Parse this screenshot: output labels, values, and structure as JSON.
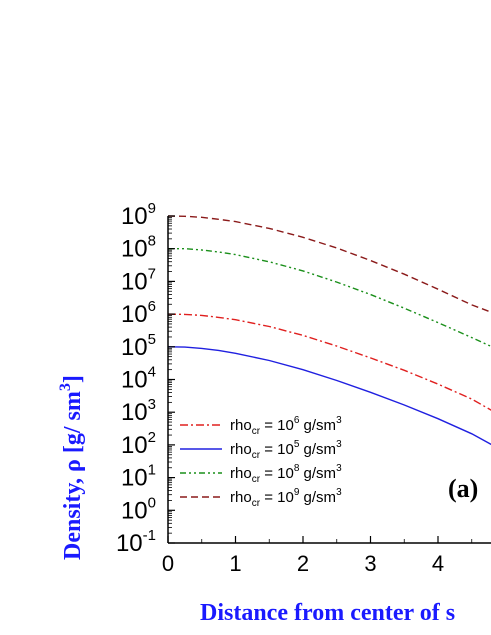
{
  "chart_data": {
    "type": "line",
    "xlabel": "Distance from center of s",
    "ylabel": "Density, ρ [g/ sm",
    "ylabel_sup": "3",
    "ylabel_close": "]",
    "panel_label": "(a)",
    "xlim": [
      0,
      4.8
    ],
    "ylim": [
      -1,
      9
    ],
    "yscale": "log",
    "x_ticks": [
      0,
      1,
      2,
      3,
      4
    ],
    "y_ticks": [
      -1,
      0,
      1,
      2,
      3,
      4,
      5,
      6,
      7,
      8,
      9
    ],
    "y_tick_base": "10",
    "legend_placement": "bottom-left",
    "series": [
      {
        "name": "rho_cr = 10^6 g/sm^3",
        "legend": {
          "pre": "rho",
          "sub": "cr",
          "mid": " = 10",
          "sup": "6",
          "post": " g/sm",
          "sup2": "3"
        },
        "color": "#e0201f",
        "dash": "8,3,2,3",
        "x": [
          0,
          0.25,
          0.5,
          0.75,
          1.0,
          1.5,
          2.0,
          2.5,
          3.0,
          3.5,
          4.0,
          4.5,
          4.8
        ],
        "y": [
          6.0,
          5.99,
          5.96,
          5.9,
          5.83,
          5.62,
          5.35,
          5.02,
          4.66,
          4.28,
          3.86,
          3.4,
          3.05
        ]
      },
      {
        "name": "rho_cr = 10^5 g/sm^3",
        "legend": {
          "pre": "rho",
          "sub": "cr",
          "mid": " = 10",
          "sup": "5",
          "post": " g/sm",
          "sup2": "3"
        },
        "color": "#2020e0",
        "dash": "",
        "x": [
          0,
          0.25,
          0.5,
          0.75,
          1.0,
          1.5,
          2.0,
          2.5,
          3.0,
          3.5,
          4.0,
          4.5,
          4.8
        ],
        "y": [
          5.0,
          4.99,
          4.95,
          4.89,
          4.8,
          4.58,
          4.3,
          3.97,
          3.61,
          3.22,
          2.8,
          2.34,
          2.0
        ]
      },
      {
        "name": "rho_cr = 10^8 g/sm^3",
        "legend": {
          "pre": "rho",
          "sub": "cr",
          "mid": " = 10",
          "sup": "8",
          "post": " g/sm",
          "sup2": "3"
        },
        "color": "#1a8f1a",
        "dash": "6,3,2,3,2,3",
        "x": [
          0,
          0.25,
          0.5,
          0.75,
          1.0,
          1.5,
          2.0,
          2.5,
          3.0,
          3.5,
          4.0,
          4.5,
          4.8
        ],
        "y": [
          8.0,
          8.0,
          7.96,
          7.9,
          7.82,
          7.6,
          7.32,
          6.98,
          6.6,
          6.18,
          5.74,
          5.28,
          5.0
        ]
      },
      {
        "name": "rho_cr = 10^9 g/sm^3",
        "legend": {
          "pre": "rho",
          "sub": "cr",
          "mid": " = 10",
          "sup": "9",
          "post": " g/sm",
          "sup2": "3"
        },
        "color": "#8b1a1a",
        "dash": "7,4",
        "x": [
          0,
          0.25,
          0.5,
          0.75,
          1.0,
          1.5,
          2.0,
          2.5,
          3.0,
          3.5,
          4.0,
          4.5,
          4.8
        ],
        "y": [
          9.0,
          8.99,
          8.96,
          8.9,
          8.83,
          8.62,
          8.35,
          8.02,
          7.64,
          7.22,
          6.76,
          6.28,
          6.05
        ]
      }
    ]
  }
}
